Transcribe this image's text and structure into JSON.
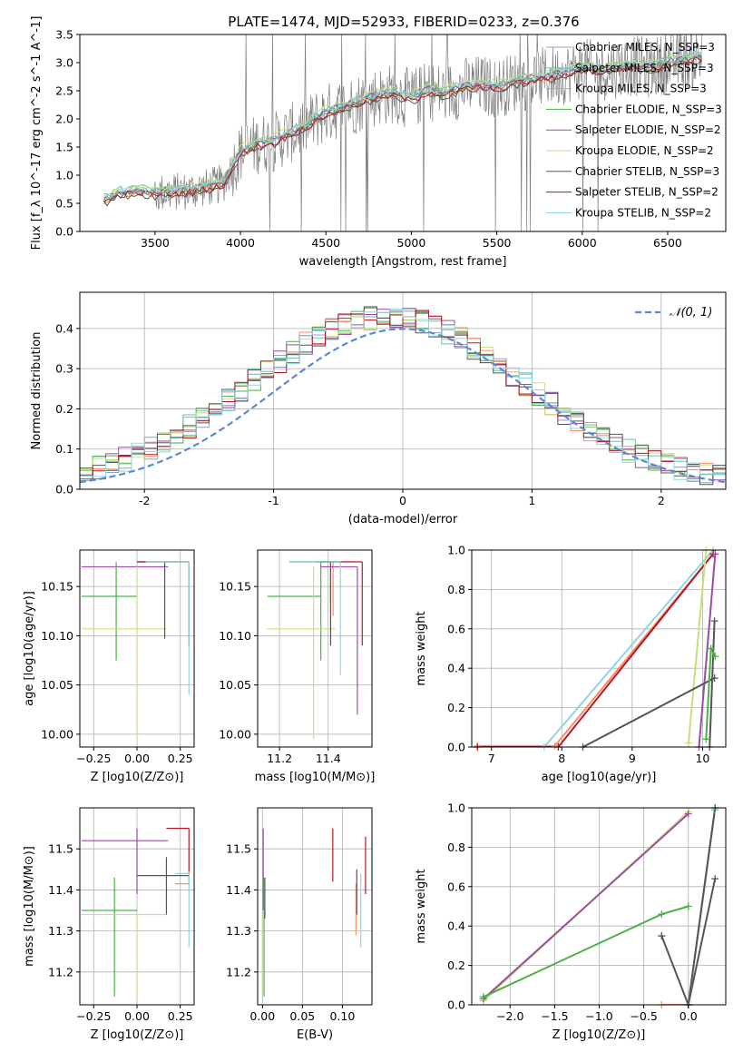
{
  "title": "PLATE=1474, MJD=52933, FIBERID=0233, z=0.376",
  "series_legend": [
    {
      "name": "Chabrier MILES, N_SSP=3",
      "color": "#8da0cb"
    },
    {
      "name": "Salpeter MILES, N_SSP=3",
      "color": "#66c2a5"
    },
    {
      "name": "Kroupa MILES, N_SSP=3",
      "color": "#fc8d62"
    },
    {
      "name": "Chabrier ELODIE, N_SSP=3",
      "color": "#4daf4a"
    },
    {
      "name": "Salpeter ELODIE, N_SSP=2",
      "color": "#984ea3"
    },
    {
      "name": "Kroupa ELODIE, N_SSP=2",
      "color": "#c7e07a"
    },
    {
      "name": "Chabrier STELIB, N_SSP=3",
      "color": "#555555"
    },
    {
      "name": "Salpeter STELIB, N_SSP=2",
      "color": "#b2182b"
    },
    {
      "name": "Kroupa STELIB, N_SSP=2",
      "color": "#8fd6e0"
    }
  ],
  "chart_data": [
    {
      "id": "spectrum",
      "type": "line",
      "xlabel": "wavelength [Angstrom, rest frame]",
      "ylabel": "Flux [f_λ 10^-17 erg cm^-2 s^-1 A^-1]",
      "xlim": [
        3060,
        6840
      ],
      "ylim": [
        0,
        3.5
      ],
      "xticks": [
        3500,
        4000,
        4500,
        5000,
        5500,
        6000,
        6500
      ],
      "yticks": [
        0.0,
        0.5,
        1.0,
        1.5,
        2.0,
        2.5,
        3.0,
        3.5
      ],
      "grid": false,
      "legend_position": "top-right",
      "data_x_range": [
        3200,
        6700
      ],
      "continuum_model": {
        "x": [
          3200,
          3300,
          3400,
          3500,
          3600,
          3700,
          3800,
          3900,
          4000,
          4100,
          4200,
          4300,
          4400,
          4500,
          4600,
          4700,
          4800,
          4900,
          5000,
          5100,
          5200,
          5300,
          5400,
          5500,
          5600,
          5700,
          5800,
          5900,
          6000,
          6100,
          6200,
          6300,
          6400,
          6500,
          6600,
          6700
        ],
        "y": [
          0.55,
          0.68,
          0.72,
          0.68,
          0.7,
          0.72,
          0.78,
          0.85,
          1.4,
          1.55,
          1.6,
          1.75,
          1.9,
          2.1,
          2.2,
          2.3,
          2.4,
          2.45,
          2.35,
          2.5,
          2.45,
          2.55,
          2.6,
          2.55,
          2.65,
          2.7,
          2.75,
          2.8,
          2.9,
          2.85,
          2.9,
          2.95,
          2.9,
          3.0,
          3.05,
          3.1
        ]
      }
    },
    {
      "id": "residuals",
      "type": "line",
      "xlabel": "(data-model)/error",
      "ylabel": "Normed distribution",
      "xlim": [
        -2.5,
        2.5
      ],
      "ylim": [
        0,
        0.49
      ],
      "xticks": [
        -2,
        -1,
        0,
        1,
        2
      ],
      "yticks": [
        0.0,
        0.1,
        0.2,
        0.3,
        0.4
      ],
      "grid": true,
      "legend": "𝒩(0, 1)",
      "legend_position": "top-right",
      "normal_curve": {
        "mean": 0,
        "sigma": 1,
        "color": "#5b87d8"
      },
      "histogram_bin_width": 0.1
    },
    {
      "id": "age-vs-Z",
      "type": "scatter",
      "xlabel": "Z [log10(Z/Z⊙)]",
      "ylabel": "age [log10(age/yr)]",
      "xlim": [
        -0.33,
        0.33
      ],
      "ylim": [
        9.987,
        10.187
      ],
      "xticks": [
        -0.25,
        0.0,
        0.25
      ],
      "xticklabels": [
        "−0.25",
        "0.00",
        "0.25"
      ],
      "yticks": [
        10.0,
        10.05,
        10.1,
        10.15
      ],
      "yticklabels": [
        "10.00",
        "10.05",
        "10.10",
        "10.15"
      ],
      "grid": true,
      "points": [
        {
          "series": 4,
          "x": -0.12,
          "y": 10.17,
          "x_lo": -0.32,
          "x_hi": 0.18,
          "y_lo": 10.17,
          "y_hi": 10.17
        },
        {
          "series": 3,
          "x": -0.12,
          "y": 10.14,
          "x_lo": -0.32,
          "x_hi": 0.0,
          "y_lo": 10.075,
          "y_hi": 10.175
        },
        {
          "series": 5,
          "x": 0.0,
          "y": 10.107,
          "x_lo": -0.32,
          "x_hi": 0.17,
          "y_lo": 9.99,
          "y_hi": 10.17
        },
        {
          "series": 6,
          "x": 0.16,
          "y": 10.175,
          "x_lo": 0.0,
          "x_hi": 0.3,
          "y_lo": 10.097,
          "y_hi": 10.175
        },
        {
          "series": 7,
          "x": 0.3,
          "y": 10.175,
          "x_lo": 0.0,
          "x_hi": 0.3,
          "y_lo": 10.09,
          "y_hi": 10.175
        },
        {
          "series": 8,
          "x": 0.3,
          "y": 10.175,
          "x_lo": 0.05,
          "x_hi": 0.3,
          "y_lo": 10.04,
          "y_hi": 10.175
        }
      ]
    },
    {
      "id": "age-vs-mass",
      "type": "scatter",
      "xlabel": "mass [log10(M/M⊙)]",
      "ylabel": "",
      "xlim": [
        11.11,
        11.58
      ],
      "ylim": [
        9.987,
        10.187
      ],
      "xticks": [
        11.2,
        11.4
      ],
      "xticklabels": [
        "11.2",
        "11.4"
      ],
      "yticks": [
        10.0,
        10.05,
        10.1,
        10.15
      ],
      "yticklabels": [
        "10.00",
        "10.05",
        "10.10",
        "10.15"
      ],
      "grid": true,
      "points": [
        {
          "series": 3,
          "x": 11.37,
          "y": 10.14,
          "x_lo": 11.15,
          "x_hi": 11.37,
          "y_lo": 10.075,
          "y_hi": 10.175
        },
        {
          "series": 5,
          "x": 11.34,
          "y": 10.107,
          "x_lo": 11.15,
          "x_hi": 11.43,
          "y_lo": 9.995,
          "y_hi": 10.17
        },
        {
          "series": 0,
          "x": 11.41,
          "y": 10.175,
          "x_lo": 11.41,
          "x_hi": 11.41,
          "y_lo": 10.13,
          "y_hi": 10.175
        },
        {
          "series": 2,
          "x": 11.42,
          "y": 10.175,
          "x_lo": 11.42,
          "x_hi": 11.42,
          "y_lo": 10.12,
          "y_hi": 10.175
        },
        {
          "series": 6,
          "x": 11.41,
          "y": 10.175,
          "x_lo": 11.35,
          "x_hi": 11.41,
          "y_lo": 10.09,
          "y_hi": 10.175
        },
        {
          "series": 7,
          "x": 11.54,
          "y": 10.175,
          "x_lo": 11.37,
          "x_hi": 11.54,
          "y_lo": 10.09,
          "y_hi": 10.175
        },
        {
          "series": 4,
          "x": 11.52,
          "y": 10.17,
          "x_lo": 11.37,
          "x_hi": 11.52,
          "y_lo": 10.02,
          "y_hi": 10.17
        },
        {
          "series": 8,
          "x": 11.45,
          "y": 10.175,
          "x_lo": 11.45,
          "x_hi": 11.45,
          "y_lo": 10.06,
          "y_hi": 10.175
        },
        {
          "series": 1,
          "x": 11.45,
          "y": 10.175,
          "x_lo": 11.24,
          "x_hi": 11.45,
          "y_lo": 10.175,
          "y_hi": 10.175
        }
      ]
    },
    {
      "id": "mass-weight-vs-age",
      "type": "line",
      "xlabel": "age [log10(age/yr)]",
      "ylabel": "mass weight",
      "xlim": [
        6.72,
        10.33
      ],
      "ylim": [
        0,
        1.0
      ],
      "xticks": [
        7,
        8,
        9,
        10
      ],
      "xticklabels": [
        "7",
        "8",
        "9",
        "10"
      ],
      "yticks": [
        0.0,
        0.2,
        0.4,
        0.6,
        0.8,
        1.0
      ],
      "yticklabels": [
        "0.0",
        "0.2",
        "0.4",
        "0.6",
        "0.8",
        "1.0"
      ],
      "grid": true,
      "series": [
        {
          "series": 8,
          "x": [
            7.75,
            10.15
          ],
          "y": [
            0.0,
            1.0
          ]
        },
        {
          "series": 2,
          "x": [
            6.8,
            7.9,
            10.15
          ],
          "y": [
            0.005,
            0.005,
            0.98
          ]
        },
        {
          "series": 7,
          "x": [
            6.8,
            7.95,
            10.15
          ],
          "y": [
            0.0,
            0.0,
            0.98
          ]
        },
        {
          "series": 5,
          "x": [
            9.8,
            10.05
          ],
          "y": [
            0.02,
            1.0
          ]
        },
        {
          "series": 4,
          "x": [
            9.95,
            10.18
          ],
          "y": [
            0.0,
            0.98
          ]
        },
        {
          "series": 6,
          "x": [
            8.3,
            10.17
          ],
          "y": [
            0.0,
            0.35
          ]
        },
        {
          "series": 6,
          "x": [
            10.1,
            10.17
          ],
          "y": [
            0.0,
            0.64
          ]
        },
        {
          "series": 3,
          "x": [
            10.05,
            10.12,
            10.18
          ],
          "y": [
            0.04,
            0.5,
            0.46
          ]
        }
      ]
    },
    {
      "id": "mass-vs-Z",
      "type": "scatter",
      "xlabel": "Z [log10(Z/Z⊙)]",
      "ylabel": "mass [log10(M/M⊙)]",
      "xlim": [
        -0.33,
        0.33
      ],
      "ylim": [
        11.12,
        11.6
      ],
      "xticks": [
        -0.25,
        0.0,
        0.25
      ],
      "xticklabels": [
        "−0.25",
        "0.00",
        "0.25"
      ],
      "yticks": [
        11.2,
        11.3,
        11.4,
        11.5
      ],
      "yticklabels": [
        "11.2",
        "11.3",
        "11.4",
        "11.5"
      ],
      "grid": true,
      "points": [
        {
          "series": 4,
          "x": 0.0,
          "y": 11.52,
          "x_lo": -0.32,
          "x_hi": 0.18,
          "y_lo": 11.39,
          "y_hi": 11.55
        },
        {
          "series": 3,
          "x": -0.13,
          "y": 11.35,
          "x_lo": -0.32,
          "x_hi": 0.0,
          "y_lo": 11.14,
          "y_hi": 11.43
        },
        {
          "series": 5,
          "x": 0.0,
          "y": 11.34,
          "x_lo": -0.32,
          "x_hi": 0.17,
          "y_lo": 11.14,
          "y_hi": 11.34
        },
        {
          "series": 6,
          "x": 0.17,
          "y": 11.435,
          "x_lo": 0.0,
          "x_hi": 0.3,
          "y_lo": 11.34,
          "y_hi": 11.48
        },
        {
          "series": 7,
          "x": 0.3,
          "y": 11.55,
          "x_lo": 0.17,
          "x_hi": 0.3,
          "y_lo": 11.42,
          "y_hi": 11.55
        },
        {
          "series": 2,
          "x": 0.3,
          "y": 11.415,
          "x_lo": 0.22,
          "x_hi": 0.3,
          "y_lo": 11.415,
          "y_hi": 11.445
        },
        {
          "series": 8,
          "x": 0.3,
          "y": 11.44,
          "x_lo": 0.22,
          "x_hi": 0.3,
          "y_lo": 11.26,
          "y_hi": 11.44
        }
      ]
    },
    {
      "id": "mass-vs-EBV",
      "type": "scatter",
      "xlabel": "E(B-V)",
      "ylabel": "",
      "xlim": [
        -0.006,
        0.137
      ],
      "ylim": [
        11.12,
        11.6
      ],
      "xticks": [
        0.0,
        0.05,
        0.1
      ],
      "xticklabels": [
        "0.00",
        "0.05",
        "0.10"
      ],
      "yticks": [
        11.2,
        11.3,
        11.4,
        11.5
      ],
      "yticklabels": [
        "11.2",
        "11.3",
        "11.4",
        "11.5"
      ],
      "grid": true,
      "points": [
        {
          "series": 4,
          "x": 0.001,
          "y": 11.45,
          "y_lo": 11.35,
          "y_hi": 11.55
        },
        {
          "series": 6,
          "x": 0.003,
          "y": 11.38,
          "y_lo": 11.33,
          "y_hi": 11.43
        },
        {
          "series": 3,
          "x": 0.002,
          "y": 11.3,
          "y_lo": 11.14,
          "y_hi": 11.43
        },
        {
          "series": 5,
          "x": 0.0,
          "y": 11.25,
          "y_lo": 11.14,
          "y_hi": 11.34
        },
        {
          "series": 7,
          "x": 0.088,
          "y": 11.485,
          "y_lo": 11.42,
          "y_hi": 11.55
        },
        {
          "series": 2,
          "x": 0.117,
          "y": 11.35,
          "y_lo": 11.29,
          "y_hi": 11.415
        },
        {
          "series": 6,
          "x": 0.118,
          "y": 11.4,
          "y_lo": 11.34,
          "y_hi": 11.45
        },
        {
          "series": 8,
          "x": 0.123,
          "y": 11.35,
          "y_lo": 11.26,
          "y_hi": 11.44
        },
        {
          "series": 7,
          "x": 0.129,
          "y": 11.45,
          "y_lo": 11.39,
          "y_hi": 11.53
        }
      ]
    },
    {
      "id": "mass-weight-vs-Z",
      "type": "line",
      "xlabel": "Z [log10(Z/Z⊙)]",
      "ylabel": "mass weight",
      "xlim": [
        -2.43,
        0.42
      ],
      "ylim": [
        0,
        1.0
      ],
      "xticks": [
        -2.0,
        -1.5,
        -1.0,
        -0.5,
        0.0
      ],
      "xticklabels": [
        "−2.0",
        "−1.5",
        "−1.0",
        "−0.5",
        "0.0"
      ],
      "yticks": [
        0.0,
        0.2,
        0.4,
        0.6,
        0.8,
        1.0
      ],
      "yticklabels": [
        "0.0",
        "0.2",
        "0.4",
        "0.6",
        "0.8",
        "1.0"
      ],
      "grid": true,
      "series": [
        {
          "series": 5,
          "x": [
            -2.3,
            0.0
          ],
          "y": [
            0.02,
            0.98
          ]
        },
        {
          "series": 4,
          "x": [
            -2.3,
            0.0
          ],
          "y": [
            0.03,
            0.97
          ]
        },
        {
          "series": 3,
          "x": [
            -2.3,
            -0.3,
            0.0
          ],
          "y": [
            0.04,
            0.46,
            0.5
          ]
        },
        {
          "series": 2,
          "x": [
            -0.3,
            0.0
          ],
          "y": [
            0.0,
            0.0
          ]
        },
        {
          "series": 6,
          "x": [
            -0.3,
            0.0,
            0.3
          ],
          "y": [
            0.35,
            0.0,
            0.64
          ]
        },
        {
          "series": 8,
          "x": [
            0.0,
            0.3
          ],
          "y": [
            0.0,
            1.0
          ]
        },
        {
          "series": 1,
          "x": [
            0.0,
            0.3
          ],
          "y": [
            0.0,
            0.99
          ]
        },
        {
          "series": 6,
          "x": [
            0.0,
            0.3
          ],
          "y": [
            0.0,
            1.0
          ]
        }
      ]
    }
  ]
}
